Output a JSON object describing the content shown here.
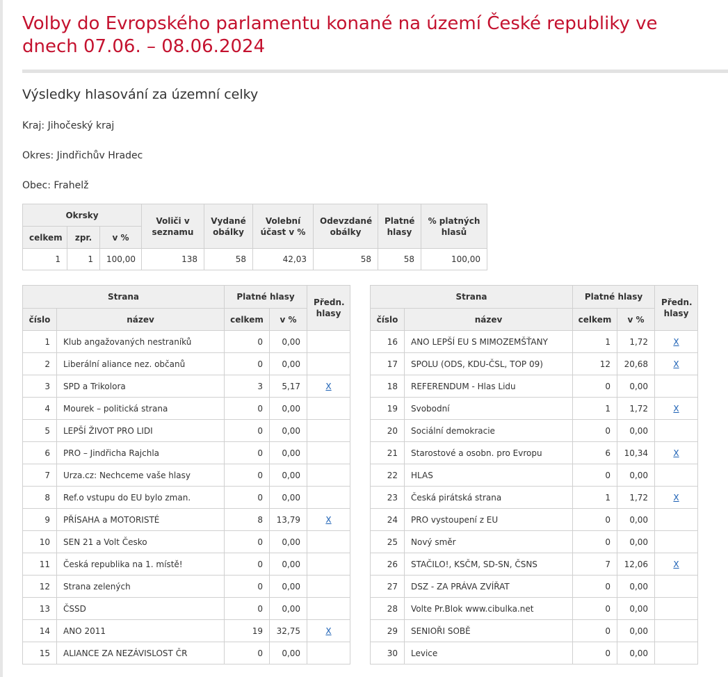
{
  "title": "Volby do Evropského parlamentu konané na území České republiky ve dnech 07.06. – 08.06.2024",
  "subtitle": "Výsledky hlasování za územní celky",
  "kraj": "Kraj: Jihočeský kraj",
  "okres": "Okres: Jindřichův Hradec",
  "obec": "Obec: Frahelž",
  "colors": {
    "title": "#c4122f",
    "header_bg": "#efefef",
    "link": "#1a5fb4"
  },
  "summary": {
    "headers": {
      "okrsky": "Okrsky",
      "celkem": "celkem",
      "zpr": "zpr.",
      "v_pct": "v %",
      "volici": "Voliči v seznamu",
      "vydane": "Vydané obálky",
      "ucast": "Volební účast v %",
      "odevzdane": "Odevzdané obálky",
      "platne": "Platné hlasy",
      "pct_platnych": "% platných hlasů"
    },
    "values": [
      "1",
      "1",
      "100,00",
      "138",
      "58",
      "42,03",
      "58",
      "58",
      "100,00"
    ]
  },
  "party_headers": {
    "strana": "Strana",
    "platne": "Platné hlasy",
    "predn": "Předn. hlasy",
    "cislo": "číslo",
    "nazev": "název",
    "celkem": "celkem",
    "v_pct": "v %"
  },
  "parties_left": [
    {
      "cislo": "1",
      "nazev": "Klub angažovaných nestraníků",
      "celkem": "0",
      "pct": "0,00",
      "pref": ""
    },
    {
      "cislo": "2",
      "nazev": "Liberální aliance nez. občanů",
      "celkem": "0",
      "pct": "0,00",
      "pref": ""
    },
    {
      "cislo": "3",
      "nazev": "SPD a Trikolora",
      "celkem": "3",
      "pct": "5,17",
      "pref": "X"
    },
    {
      "cislo": "4",
      "nazev": "Mourek – politická strana",
      "celkem": "0",
      "pct": "0,00",
      "pref": ""
    },
    {
      "cislo": "5",
      "nazev": "LEPŠÍ ŽIVOT PRO LIDI",
      "celkem": "0",
      "pct": "0,00",
      "pref": ""
    },
    {
      "cislo": "6",
      "nazev": "PRO – Jindřicha Rajchla",
      "celkem": "0",
      "pct": "0,00",
      "pref": ""
    },
    {
      "cislo": "7",
      "nazev": "Urza.cz: Nechceme vaše hlasy",
      "celkem": "0",
      "pct": "0,00",
      "pref": ""
    },
    {
      "cislo": "8",
      "nazev": "Ref.o vstupu do EU bylo zman.",
      "celkem": "0",
      "pct": "0,00",
      "pref": ""
    },
    {
      "cislo": "9",
      "nazev": "PŘÍSAHA a MOTORISTÉ",
      "celkem": "8",
      "pct": "13,79",
      "pref": "X"
    },
    {
      "cislo": "10",
      "nazev": "SEN 21 a Volt Česko",
      "celkem": "0",
      "pct": "0,00",
      "pref": ""
    },
    {
      "cislo": "11",
      "nazev": "Česká republika na 1. místě!",
      "celkem": "0",
      "pct": "0,00",
      "pref": ""
    },
    {
      "cislo": "12",
      "nazev": "Strana zelených",
      "celkem": "0",
      "pct": "0,00",
      "pref": ""
    },
    {
      "cislo": "13",
      "nazev": "ČSSD",
      "celkem": "0",
      "pct": "0,00",
      "pref": ""
    },
    {
      "cislo": "14",
      "nazev": "ANO 2011",
      "celkem": "19",
      "pct": "32,75",
      "pref": "X"
    },
    {
      "cislo": "15",
      "nazev": "ALIANCE ZA NEZÁVISLOST ČR",
      "celkem": "0",
      "pct": "0,00",
      "pref": ""
    }
  ],
  "parties_right": [
    {
      "cislo": "16",
      "nazev": "ANO LEPŠÍ EU S MIMOZEMŠŤANY",
      "celkem": "1",
      "pct": "1,72",
      "pref": "X"
    },
    {
      "cislo": "17",
      "nazev": "SPOLU (ODS, KDU-ČSL, TOP 09)",
      "celkem": "12",
      "pct": "20,68",
      "pref": "X"
    },
    {
      "cislo": "18",
      "nazev": "REFERENDUM - Hlas Lidu",
      "celkem": "0",
      "pct": "0,00",
      "pref": ""
    },
    {
      "cislo": "19",
      "nazev": "Svobodní",
      "celkem": "1",
      "pct": "1,72",
      "pref": "X"
    },
    {
      "cislo": "20",
      "nazev": "Sociální demokracie",
      "celkem": "0",
      "pct": "0,00",
      "pref": ""
    },
    {
      "cislo": "21",
      "nazev": "Starostové a osobn. pro Evropu",
      "celkem": "6",
      "pct": "10,34",
      "pref": "X"
    },
    {
      "cislo": "22",
      "nazev": "HLAS",
      "celkem": "0",
      "pct": "0,00",
      "pref": ""
    },
    {
      "cislo": "23",
      "nazev": "Česká pirátská strana",
      "celkem": "1",
      "pct": "1,72",
      "pref": "X"
    },
    {
      "cislo": "24",
      "nazev": "PRO vystoupení z EU",
      "celkem": "0",
      "pct": "0,00",
      "pref": ""
    },
    {
      "cislo": "25",
      "nazev": "Nový směr",
      "celkem": "0",
      "pct": "0,00",
      "pref": ""
    },
    {
      "cislo": "26",
      "nazev": "STAČILO!, KSČM, SD-SN, ČSNS",
      "celkem": "7",
      "pct": "12,06",
      "pref": "X"
    },
    {
      "cislo": "27",
      "nazev": "DSZ - ZA PRÁVA ZVÍŘAT",
      "celkem": "0",
      "pct": "0,00",
      "pref": ""
    },
    {
      "cislo": "28",
      "nazev": "Volte Pr.Blok www.cibulka.net",
      "celkem": "0",
      "pct": "0,00",
      "pref": ""
    },
    {
      "cislo": "29",
      "nazev": "SENIOŘI SOBĚ",
      "celkem": "0",
      "pct": "0,00",
      "pref": ""
    },
    {
      "cislo": "30",
      "nazev": "Levice",
      "celkem": "0",
      "pct": "0,00",
      "pref": ""
    }
  ]
}
